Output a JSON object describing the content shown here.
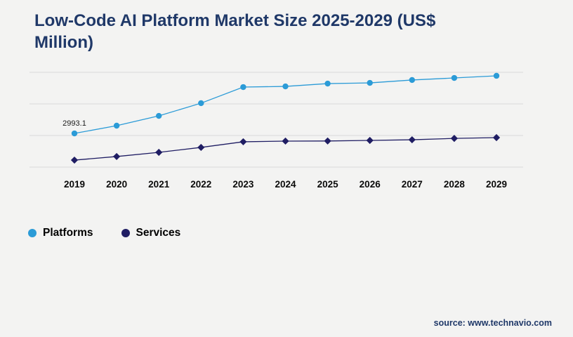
{
  "title": "Low-Code AI Platform Market Size 2025-2029 (US$ Million)",
  "source": "source: www.technavio.com",
  "colors": {
    "title_navy": "#1f3868",
    "platforms_blue": "#2b9bd7",
    "services_navy": "#1f1d63",
    "gridline": "#d9d9d9",
    "background": "#f3f3f2",
    "axis_text": "#0a0a0a",
    "annotation_text": "#1a1a1a"
  },
  "legend": [
    {
      "label": "Platforms",
      "color": "#2b9bd7"
    },
    {
      "label": "Services",
      "color": "#1f1d63"
    }
  ],
  "chart_data": {
    "type": "line",
    "title": "Low-Code AI Platform Market Size 2025-2029 (US$ Million)",
    "xlabel": "",
    "ylabel": "",
    "x": [
      2019,
      2020,
      2021,
      2022,
      2023,
      2024,
      2025,
      2026,
      2027,
      2028,
      2029
    ],
    "series": [
      {
        "name": "Platforms",
        "color": "#2b9bd7",
        "marker": "circle",
        "values": [
          2993.1,
          3680,
          4550,
          5680,
          7110,
          7170,
          7420,
          7480,
          7740,
          7920,
          8110
        ]
      },
      {
        "name": "Services",
        "color": "#1f1d63",
        "marker": "diamond",
        "values": [
          620,
          940,
          1310,
          1750,
          2250,
          2310,
          2320,
          2370,
          2430,
          2550,
          2620
        ]
      }
    ],
    "annotations": [
      {
        "text": "2993.1",
        "series": "Platforms",
        "x": 2019
      }
    ],
    "ylim": [
      0,
      8920
    ],
    "gridline_values": [
      0,
      2806,
      5612,
      8418
    ],
    "grid": true,
    "legend_position": "bottom-left"
  }
}
